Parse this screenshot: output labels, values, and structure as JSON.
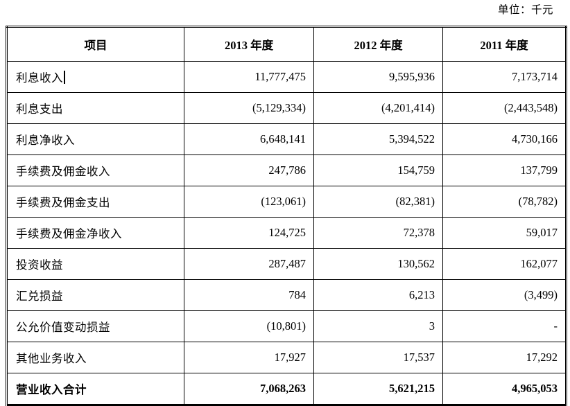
{
  "unit_label": "单位：千元",
  "table": {
    "columns": [
      "项目",
      "2013 年度",
      "2012 年度",
      "2011 年度"
    ],
    "rows": [
      {
        "label": "利息收入",
        "values": [
          "11,777,475",
          "9,595,936",
          "7,173,714"
        ],
        "cursor": true,
        "bold": false
      },
      {
        "label": "利息支出",
        "values": [
          "(5,129,334)",
          "(4,201,414)",
          "(2,443,548)"
        ],
        "cursor": false,
        "bold": false
      },
      {
        "label": "利息净收入",
        "values": [
          "6,648,141",
          "5,394,522",
          "4,730,166"
        ],
        "cursor": false,
        "bold": false
      },
      {
        "label": "手续费及佣金收入",
        "values": [
          "247,786",
          "154,759",
          "137,799"
        ],
        "cursor": false,
        "bold": false
      },
      {
        "label": "手续费及佣金支出",
        "values": [
          "(123,061)",
          "(82,381)",
          "(78,782)"
        ],
        "cursor": false,
        "bold": false
      },
      {
        "label": "手续费及佣金净收入",
        "values": [
          "124,725",
          "72,378",
          "59,017"
        ],
        "cursor": false,
        "bold": false
      },
      {
        "label": "投资收益",
        "values": [
          "287,487",
          "130,562",
          "162,077"
        ],
        "cursor": false,
        "bold": false
      },
      {
        "label": "汇兑损益",
        "values": [
          "784",
          "6,213",
          "(3,499)"
        ],
        "cursor": false,
        "bold": false
      },
      {
        "label": "公允价值变动损益",
        "values": [
          "(10,801)",
          "3",
          "-"
        ],
        "cursor": false,
        "bold": false
      },
      {
        "label": "其他业务收入",
        "values": [
          "17,927",
          "17,537",
          "17,292"
        ],
        "cursor": false,
        "bold": false
      },
      {
        "label": "营业收入合计",
        "values": [
          "7,068,263",
          "5,621,215",
          "4,965,053"
        ],
        "cursor": false,
        "bold": true
      }
    ]
  }
}
